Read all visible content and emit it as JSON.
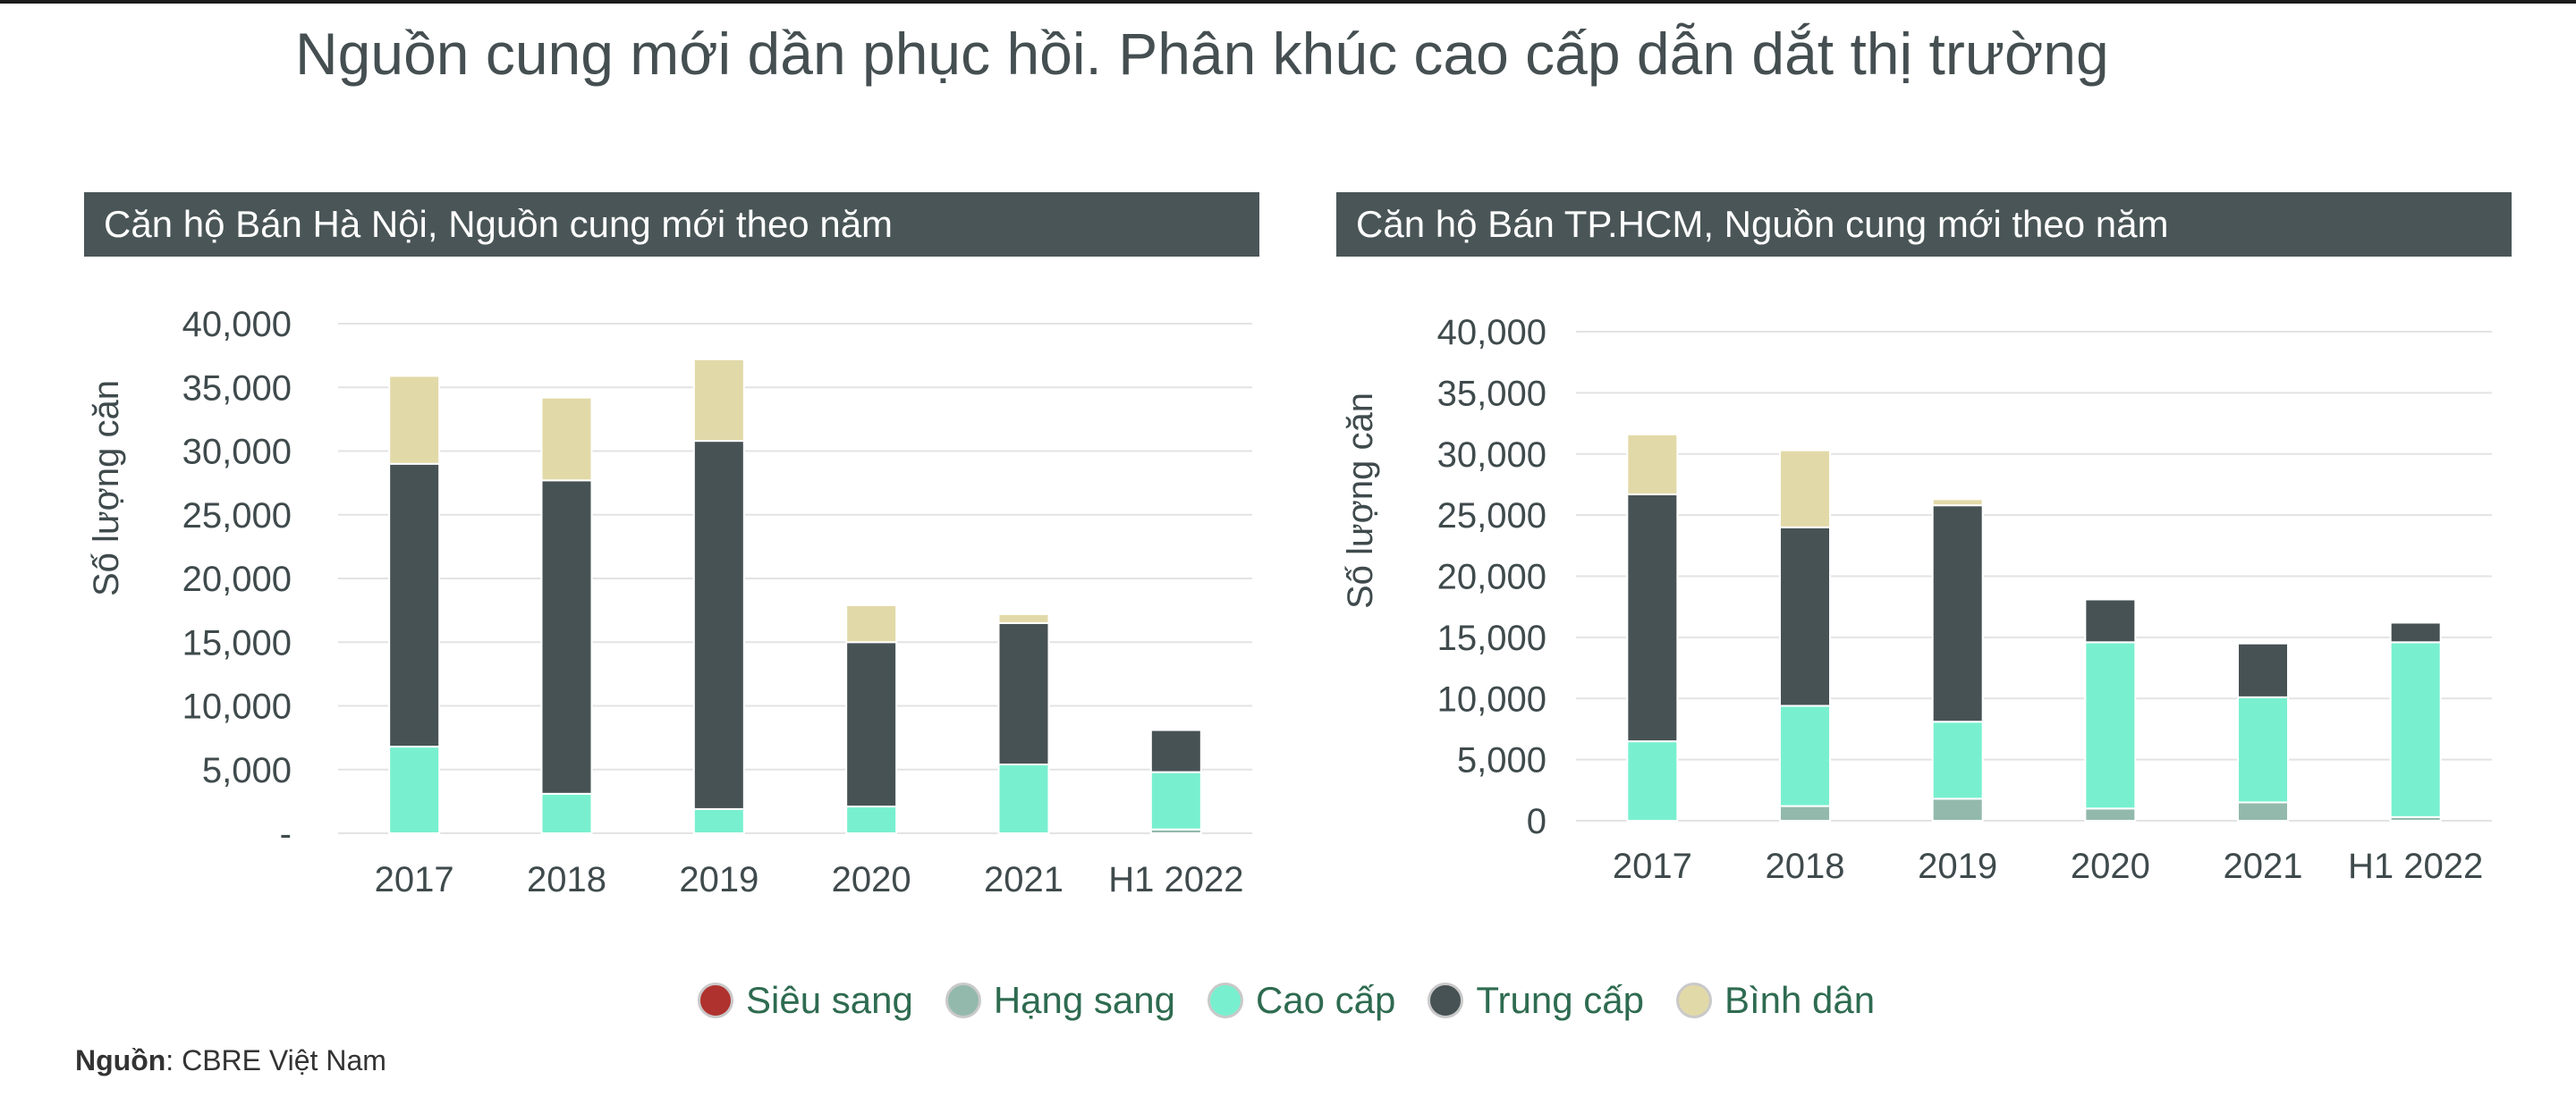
{
  "title": "Nguồn cung mới dần phục hồi. Phân khúc cao cấp dẫn dắt thị trường",
  "source": {
    "label": "Nguồn",
    "text": ": CBRE Việt Nam"
  },
  "legend": [
    {
      "name": "Siêu sang",
      "color": "#b0322e"
    },
    {
      "name": "Hạng sang",
      "color": "#93b9ad"
    },
    {
      "name": "Cao cấp",
      "color": "#78f0cf"
    },
    {
      "name": "Trung cấp",
      "color": "#475254"
    },
    {
      "name": "Bình dân",
      "color": "#e2d9a8"
    }
  ],
  "chart_data": [
    {
      "type": "bar",
      "stacked": true,
      "title": "Căn hộ Bán Hà Nội, Nguồn cung mới theo năm",
      "ylabel": "Số lượng căn",
      "ylim": [
        0,
        40000
      ],
      "yticks": [
        "-",
        "5,000",
        "10,000",
        "15,000",
        "20,000",
        "25,000",
        "30,000",
        "35,000",
        "40,000"
      ],
      "categories": [
        "2017",
        "2018",
        "2019",
        "2020",
        "2021",
        "H1 2022"
      ],
      "series": [
        {
          "name": "Siêu sang",
          "color": "#b0322e",
          "values": [
            0,
            0,
            0,
            0,
            0,
            0
          ]
        },
        {
          "name": "Hạng sang",
          "color": "#93b9ad",
          "values": [
            0,
            0,
            0,
            0,
            0,
            300
          ]
        },
        {
          "name": "Cao cấp",
          "color": "#78f0cf",
          "values": [
            6800,
            3100,
            1900,
            2100,
            5400,
            4500
          ]
        },
        {
          "name": "Trung cấp",
          "color": "#475254",
          "values": [
            22200,
            24600,
            28900,
            12900,
            11100,
            3300
          ]
        },
        {
          "name": "Bình dân",
          "color": "#e2d9a8",
          "values": [
            6900,
            6500,
            6400,
            2900,
            700,
            0
          ]
        }
      ]
    },
    {
      "type": "bar",
      "stacked": true,
      "title": "Căn hộ Bán TP.HCM, Nguồn cung mới theo năm",
      "ylabel": "Số lượng căn",
      "ylim": [
        0,
        40000
      ],
      "yticks": [
        "0",
        "5,000",
        "10,000",
        "15,000",
        "20,000",
        "25,000",
        "30,000",
        "35,000",
        "40,000"
      ],
      "categories": [
        "2017",
        "2018",
        "2019",
        "2020",
        "2021",
        "H1 2022"
      ],
      "series": [
        {
          "name": "Siêu sang",
          "color": "#b0322e",
          "values": [
            0,
            0,
            0,
            0,
            0,
            0
          ]
        },
        {
          "name": "Hạng sang",
          "color": "#93b9ad",
          "values": [
            0,
            1200,
            1800,
            1000,
            1500,
            300
          ]
        },
        {
          "name": "Cao cấp",
          "color": "#78f0cf",
          "values": [
            6500,
            8200,
            6300,
            13600,
            8600,
            14300
          ]
        },
        {
          "name": "Trung cấp",
          "color": "#475254",
          "values": [
            20200,
            14600,
            17700,
            3500,
            4400,
            1600
          ]
        },
        {
          "name": "Bình dân",
          "color": "#e2d9a8",
          "values": [
            4900,
            6300,
            500,
            0,
            0,
            0
          ]
        }
      ]
    }
  ]
}
